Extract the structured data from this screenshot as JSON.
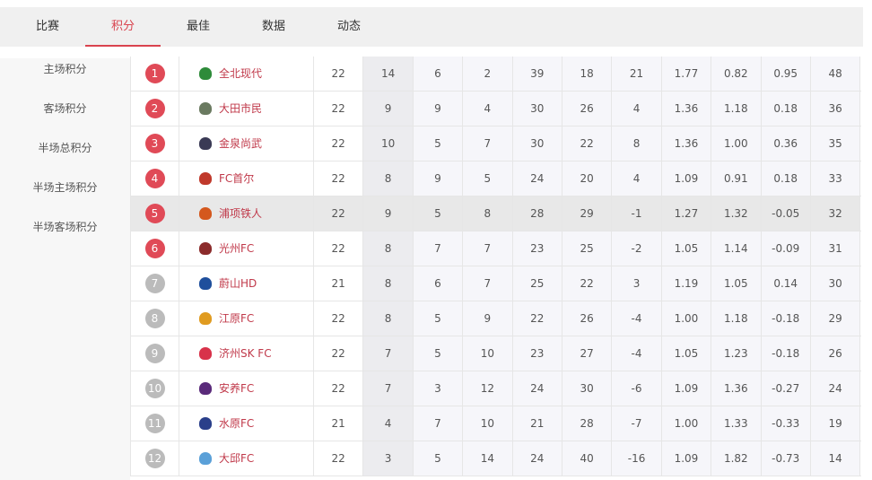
{
  "tabs": [
    "比赛",
    "积分",
    "最佳",
    "数据",
    "动态"
  ],
  "active_tab": 1,
  "sidebar": [
    "主场积分",
    "客场积分",
    "半场总积分",
    "半场主场积分",
    "半场客场积分"
  ],
  "colors": {
    "accent": "#d9434e",
    "top_badge": "#e04a57",
    "other_badge": "#bbbbbb"
  },
  "highlight_rank": 5,
  "rows": [
    {
      "rank": "1",
      "team": "全北现代",
      "logo": "#2e8b3a",
      "cells": [
        "22",
        "14",
        "6",
        "2",
        "39",
        "18",
        "21",
        "1.77",
        "0.82",
        "0.95",
        "48"
      ]
    },
    {
      "rank": "2",
      "team": "大田市民",
      "logo": "#6a7a60",
      "cells": [
        "22",
        "9",
        "9",
        "4",
        "30",
        "26",
        "4",
        "1.36",
        "1.18",
        "0.18",
        "36"
      ]
    },
    {
      "rank": "3",
      "team": "金泉尚武",
      "logo": "#3a3a55",
      "cells": [
        "22",
        "10",
        "5",
        "7",
        "30",
        "22",
        "8",
        "1.36",
        "1.00",
        "0.36",
        "35"
      ]
    },
    {
      "rank": "4",
      "team": "FC首尔",
      "logo": "#c0392b",
      "cells": [
        "22",
        "8",
        "9",
        "5",
        "24",
        "20",
        "4",
        "1.09",
        "0.91",
        "0.18",
        "33"
      ]
    },
    {
      "rank": "5",
      "team": "浦项铁人",
      "logo": "#d4581e",
      "cells": [
        "22",
        "9",
        "5",
        "8",
        "28",
        "29",
        "-1",
        "1.27",
        "1.32",
        "-0.05",
        "32"
      ]
    },
    {
      "rank": "6",
      "team": "光州FC",
      "logo": "#8b2b2b",
      "cells": [
        "22",
        "8",
        "7",
        "7",
        "23",
        "25",
        "-2",
        "1.05",
        "1.14",
        "-0.09",
        "31"
      ]
    },
    {
      "rank": "7",
      "team": "蔚山HD",
      "logo": "#1f4f9c",
      "cells": [
        "21",
        "8",
        "6",
        "7",
        "25",
        "22",
        "3",
        "1.19",
        "1.05",
        "0.14",
        "30"
      ]
    },
    {
      "rank": "8",
      "team": "江原FC",
      "logo": "#e09b20",
      "cells": [
        "22",
        "8",
        "5",
        "9",
        "22",
        "26",
        "-4",
        "1.00",
        "1.18",
        "-0.18",
        "29"
      ]
    },
    {
      "rank": "9",
      "team": "济州SK FC",
      "logo": "#d8324a",
      "cells": [
        "22",
        "7",
        "5",
        "10",
        "23",
        "27",
        "-4",
        "1.05",
        "1.23",
        "-0.18",
        "26"
      ]
    },
    {
      "rank": "10",
      "team": "安养FC",
      "logo": "#5a2a7a",
      "cells": [
        "22",
        "7",
        "3",
        "12",
        "24",
        "30",
        "-6",
        "1.09",
        "1.36",
        "-0.27",
        "24"
      ]
    },
    {
      "rank": "11",
      "team": "水原FC",
      "logo": "#2a3f8a",
      "cells": [
        "21",
        "4",
        "7",
        "10",
        "21",
        "28",
        "-7",
        "1.00",
        "1.33",
        "-0.33",
        "19"
      ]
    },
    {
      "rank": "12",
      "team": "大邱FC",
      "logo": "#5aa0d8",
      "cells": [
        "22",
        "3",
        "5",
        "14",
        "24",
        "40",
        "-16",
        "1.09",
        "1.82",
        "-0.73",
        "14"
      ]
    }
  ]
}
